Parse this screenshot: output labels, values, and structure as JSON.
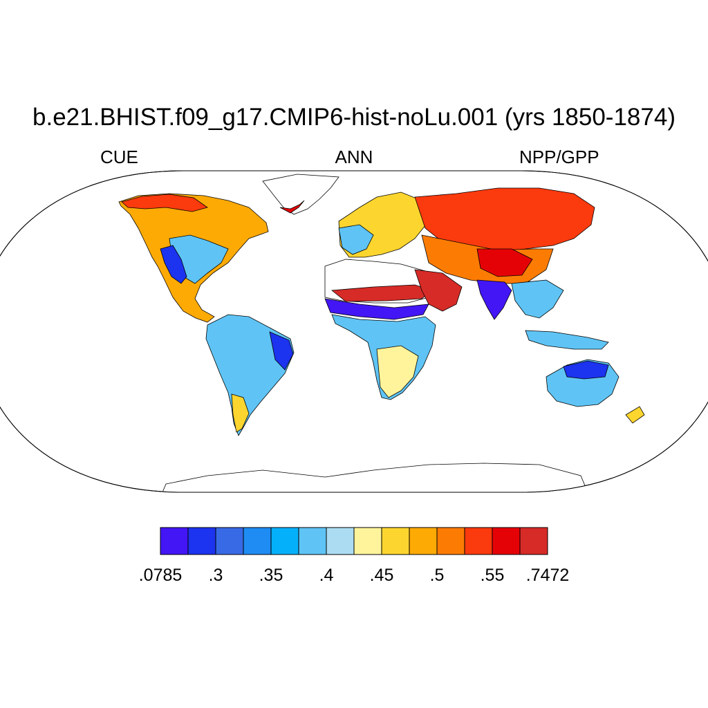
{
  "title": "b.e21.BHIST.f09_g17.CMIP6-hist-noLu.001 (yrs 1850-1874)",
  "left_string": "CUE",
  "center_string": "ANN",
  "right_string": "NPP/GPP",
  "colorbar": {
    "colors": [
      "#4316f5",
      "#1c33ef",
      "#386ae6",
      "#1e8cf3",
      "#05b0fa",
      "#5fc4f5",
      "#acdcf2",
      "#fff49b",
      "#fdd52f",
      "#fdaa05",
      "#fc7c03",
      "#fb3a0e",
      "#e50207",
      "#d62b27"
    ],
    "tick_labels": [
      ".0785",
      ".3",
      ".35",
      ".4",
      ".45",
      ".5",
      ".55",
      ".7472"
    ],
    "tick_boxes": [
      0,
      2,
      4,
      6,
      8,
      10,
      12,
      14
    ]
  }
}
